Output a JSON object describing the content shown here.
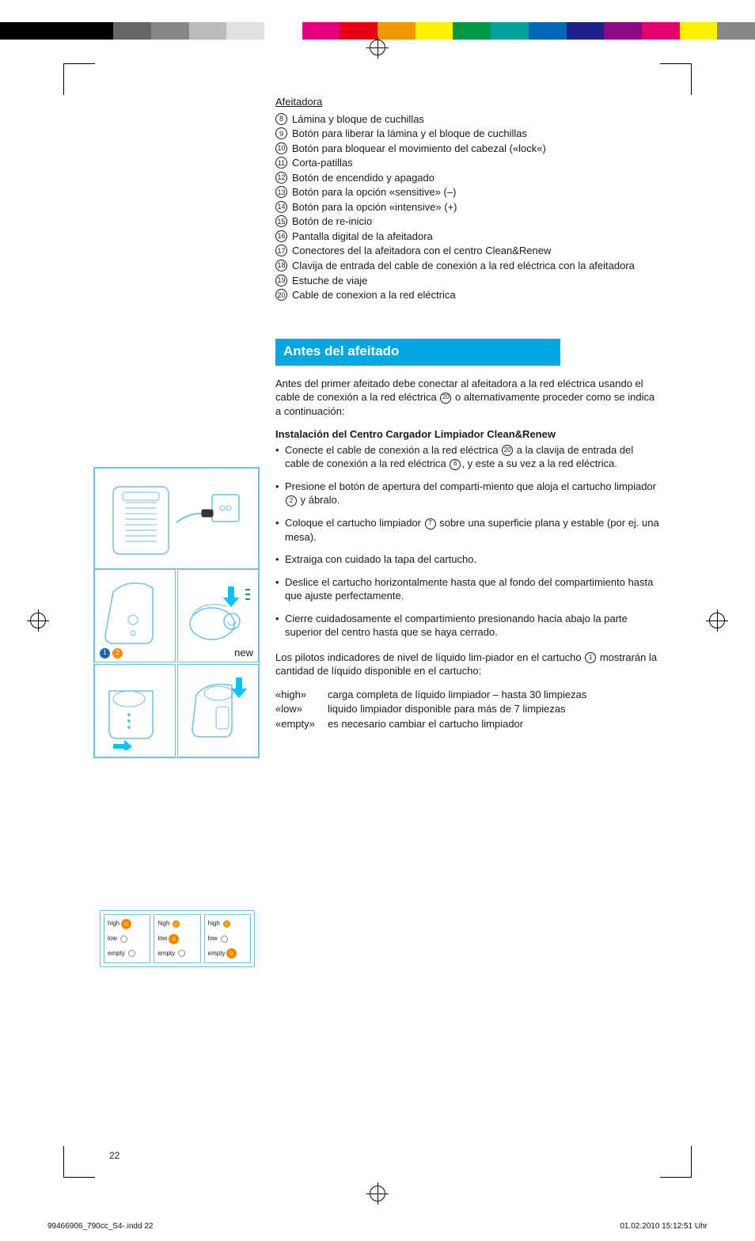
{
  "colorbar": [
    "#000000",
    "#000000",
    "#000000",
    "#666666",
    "#888888",
    "#bbbbbb",
    "#e0e0e0",
    "#ffffff",
    "#e4007f",
    "#e60012",
    "#f39800",
    "#fff100",
    "#009944",
    "#00a29a",
    "#0068b7",
    "#1d2088",
    "#920783",
    "#e5006e",
    "#fff100",
    "#888888"
  ],
  "shaver_heading": "Afeitadora",
  "parts": [
    {
      "num": "8",
      "text": "Lámina y bloque de cuchillas"
    },
    {
      "num": "9",
      "text": "Botón para liberar la lámina y el bloque de cuchillas"
    },
    {
      "num": "10",
      "text": "Botón para bloquear el movimiento del cabezal («lock«)"
    },
    {
      "num": "11",
      "text": "Corta-patillas"
    },
    {
      "num": "12",
      "text": "Botón de encendido y apagado"
    },
    {
      "num": "13",
      "text": "Botón para la opción «sensitive» (–)"
    },
    {
      "num": "14",
      "text": "Botón para la opción «intensive» (+)"
    },
    {
      "num": "15",
      "text": "Botón de re-inicio"
    },
    {
      "num": "16",
      "text": "Pantalla digital de la afeitadora"
    },
    {
      "num": "17",
      "text": "Conectores del la afeitadora con el centro Clean&Renew"
    },
    {
      "num": "18",
      "text": "Clavija de entrada del cable de conexión a la red eléctrica con la afeitadora"
    },
    {
      "num": "19",
      "text": "Estuche de viaje"
    },
    {
      "num": "20",
      "text": "Cable de conexion a la red eléctrica"
    }
  ],
  "section_title": "Antes del afeitado",
  "intro_a": "Antes del primer afeitado debe conectar al afeitadora a la red eléctrica usando el cable de conexión a la red eléctrica ",
  "intro_ref1": "20",
  "intro_b": " o alternativamente proceder como se indica a continuación:",
  "install_heading": "Instalación del Centro Cargador Limpiador Clean&Renew",
  "bul1a": "Conecte el cable de conexión a la red eléctrica ",
  "bul1ref1": "20",
  "bul1b": " a la clavija de entrada del cable de conexión a la red eléctrica ",
  "bul1ref2": "6",
  "bul1c": ", y este a su vez a la red eléctrica.",
  "bul2a": "Presione el botón de apertura del comparti-miento que aloja el cartucho limpiador ",
  "bul2ref": "2",
  "bul2b": " y ábralo.",
  "bul3a": "Coloque el cartucho limpiador ",
  "bul3ref": "7",
  "bul3b": " sobre una superficie plana y estable (por ej. una mesa).",
  "bul4": "Extraiga con cuidado la tapa del cartucho.",
  "bul5": "Deslice el cartucho horizontalmente hasta que al fondo del compartimiento hasta que ajuste perfectamente.",
  "bul6": "Cierre cuidadosamente el compartimiento presionando hacia abajo la parte superior del centro hasta que se haya cerrado.",
  "pilot_a": "Los pilotos indicadores de nivel de líquido lim-piador en el cartucho ",
  "pilot_ref": "1",
  "pilot_b": " mostrarán la cantidad de líquido disponible en el cartucho:",
  "defs": [
    {
      "k": "«high»",
      "v": "carga completa de líquido limpiador – hasta 30 limpiezas"
    },
    {
      "k": "«low»",
      "v": "liquido limpiador disponible para más de 7 limpiezas"
    },
    {
      "k": "«empty»",
      "v": "es necesario cambiar el cartucho limpiador"
    }
  ],
  "indicator_labels": {
    "high": "high",
    "low": "low",
    "empty": "empty"
  },
  "illus": {
    "new_label": "new",
    "badge1_color": "#1e5fbf",
    "badge2_color": "#ff8a00",
    "arrow_fill": "#00c4f5",
    "arrow_accent": "#2a9d3a"
  },
  "page_number": "22",
  "footer_left": "99466906_790cc_S4-.indd   22",
  "footer_right": "01.02.2010   15:12:51 Uhr"
}
